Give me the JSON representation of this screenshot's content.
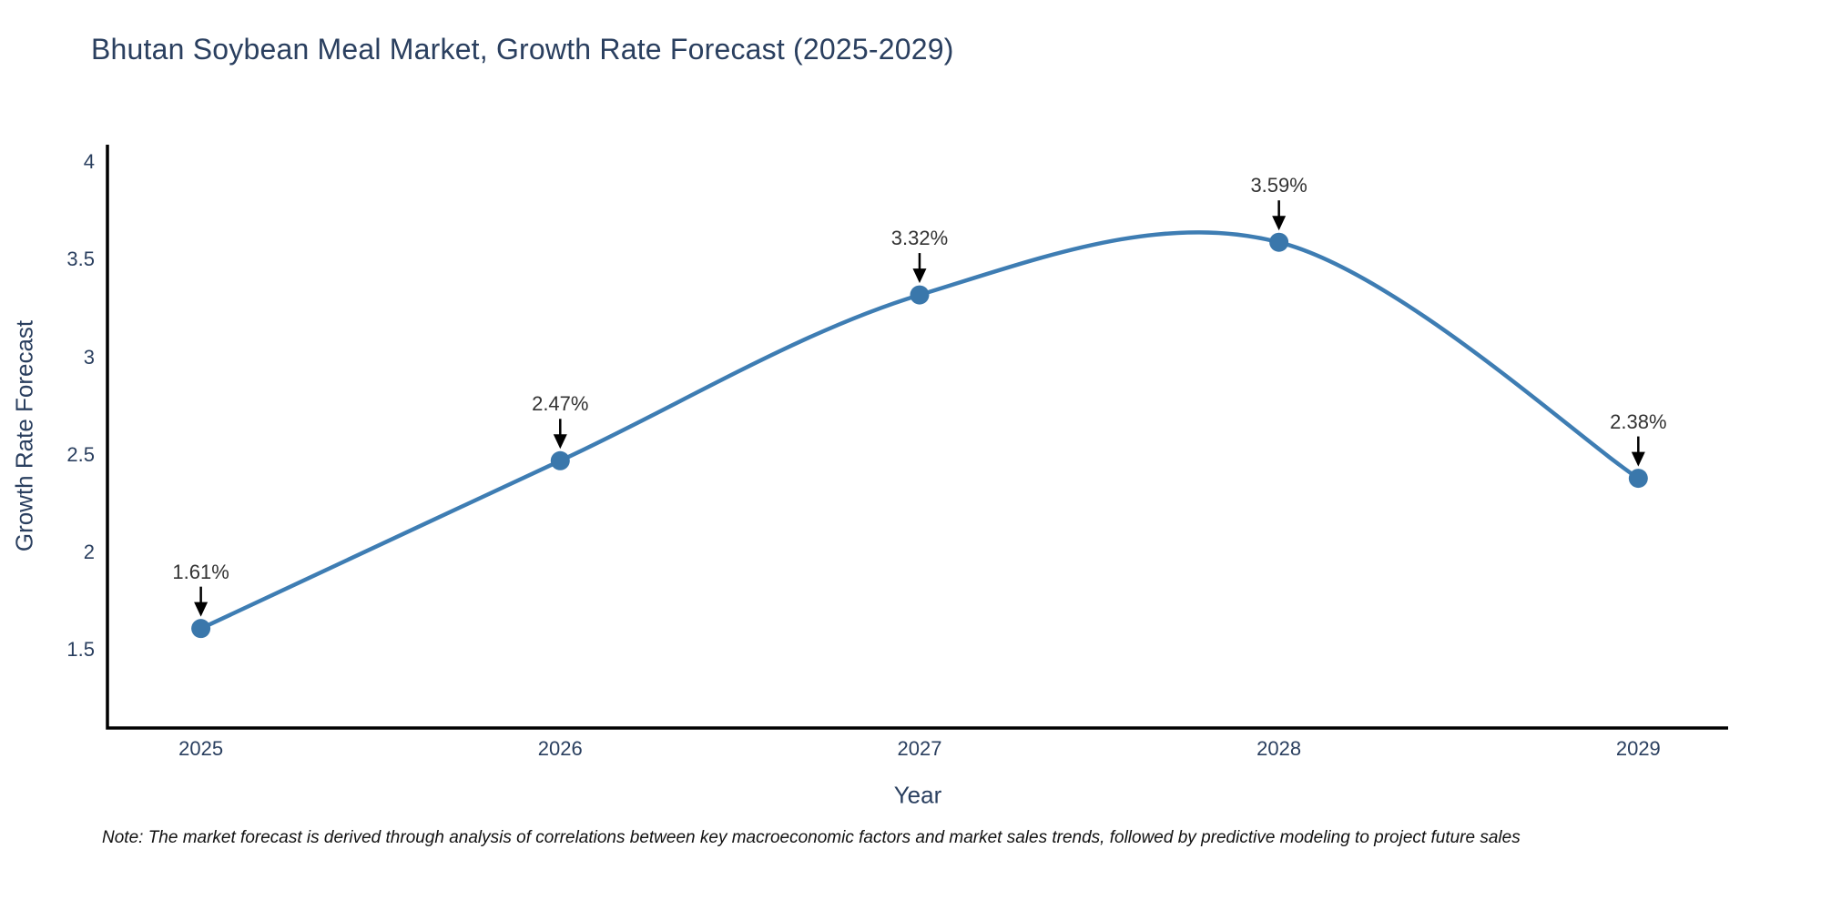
{
  "title": "Bhutan Soybean Meal Market, Growth Rate Forecast (2025-2029)",
  "note": "Note: The market forecast is derived through analysis of correlations between key macroeconomic factors and market sales trends, followed by predictive modeling to project future sales",
  "chart_data": {
    "type": "line",
    "line_shape": "spline",
    "title": "Bhutan Soybean Meal Market, Growth Rate Forecast (2025-2029)",
    "xlabel": "Year",
    "ylabel": "Growth Rate Forecast",
    "x": [
      2025,
      2026,
      2027,
      2028,
      2029
    ],
    "values": [
      1.61,
      2.47,
      3.32,
      3.59,
      2.38
    ],
    "point_labels": [
      "1.61%",
      "2.47%",
      "3.32%",
      "3.59%",
      "2.38%"
    ],
    "x_tick_labels": [
      "2025",
      "2026",
      "2027",
      "2028",
      "2029"
    ],
    "y_ticks": [
      1.5,
      2,
      2.5,
      3,
      3.5,
      4
    ],
    "y_tick_labels": [
      "1.5",
      "2",
      "2.5",
      "3",
      "3.5",
      "4"
    ],
    "xlim": [
      2024.74,
      2029.25
    ],
    "ylim": [
      1.1,
      4.09
    ],
    "grid": false,
    "legend_position": "none",
    "annotation_style": "value labels with downward black arrows pointing to markers",
    "colors": {
      "line": "#3e7db3",
      "marker": "#3a77ab",
      "axis": "#000000",
      "arrow": "#000000",
      "title_text": "#2a3f5f",
      "tick_text": "#2a3f5f",
      "annotation_text": "#333333",
      "background": "#ffffff"
    }
  }
}
